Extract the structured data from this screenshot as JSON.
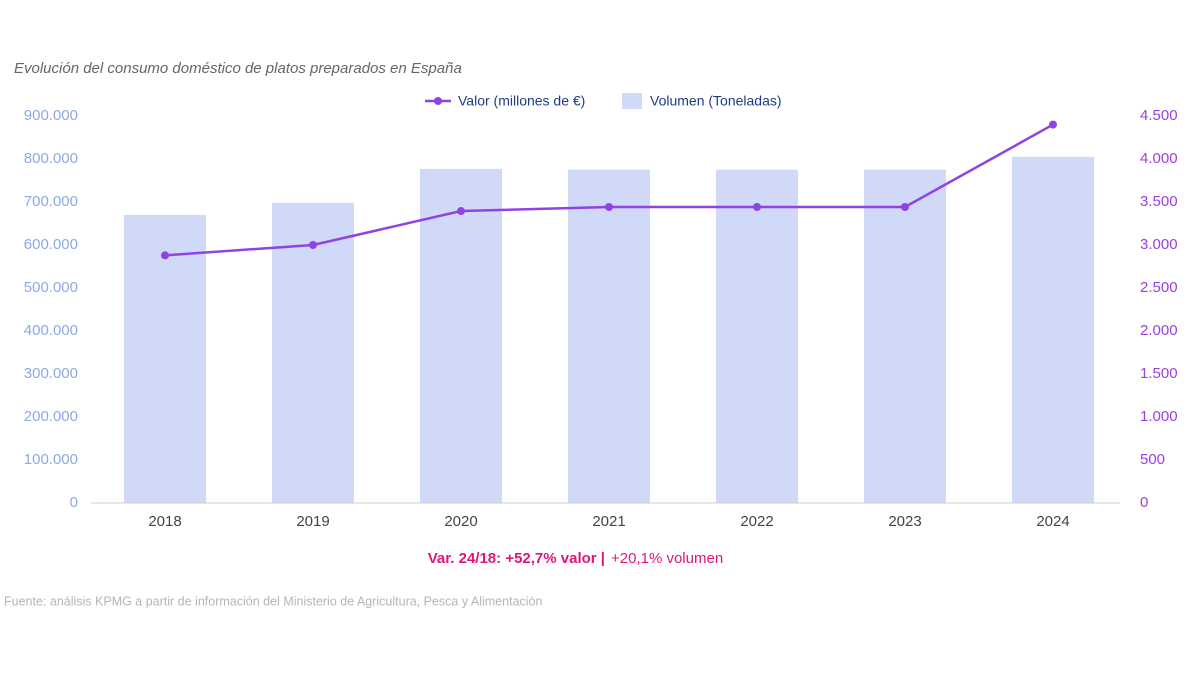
{
  "chart_data": {
    "type": "bar+line",
    "title": "Evolución del consumo doméstico de platos preparados en España",
    "categories": [
      "2018",
      "2019",
      "2020",
      "2021",
      "2022",
      "2023",
      "2024"
    ],
    "series": [
      {
        "name": "Volumen (Toneladas)",
        "type": "bar",
        "color": "#d0d9f8",
        "values": [
          670000,
          698000,
          777000,
          775000,
          775000,
          775000,
          805000
        ]
      },
      {
        "name": "Valor (millones de €)",
        "type": "line",
        "axis": "y2",
        "color": "#9043e3",
        "values": [
          2880,
          3000,
          3395,
          3442,
          3442,
          3442,
          4400
        ]
      }
    ],
    "ylim": [
      0,
      900000
    ],
    "yticks": [
      0,
      {
        "value": 100000,
        "label": "100.000"
      },
      {
        "value": 200000,
        "label": "200.000"
      },
      {
        "value": 300000,
        "label": "300.000"
      },
      {
        "value": 400000,
        "label": "400.000"
      },
      {
        "value": 500000,
        "label": "500.000"
      },
      {
        "value": 600000,
        "label": "600.000"
      },
      {
        "value": 700000,
        "label": "700.000"
      },
      {
        "value": 800000,
        "label": "800.000"
      },
      {
        "value": 900000,
        "label": "900.000"
      }
    ],
    "y2lim": [
      0,
      4500
    ],
    "y2ticks": [
      0,
      500,
      {
        "value": 1000,
        "label": "1.000"
      },
      {
        "value": 1500,
        "label": "1.500"
      },
      {
        "value": 2000,
        "label": "2.000"
      },
      {
        "value": 2500,
        "label": "2.500"
      },
      {
        "value": 3000,
        "label": "3.000"
      },
      {
        "value": 3500,
        "label": "3.500"
      },
      {
        "value": 4000,
        "label": "4.000"
      },
      {
        "value": 4500,
        "label": "4.500"
      }
    ],
    "grid": false,
    "legend": "top",
    "annotation": [
      "Var. 24/18: +52,7% valor |",
      "+20,1% volumen"
    ],
    "source": "Fuente: análisis KPMG a partir de información del Ministerio de Agricultura, Pesca y Alimentación"
  }
}
